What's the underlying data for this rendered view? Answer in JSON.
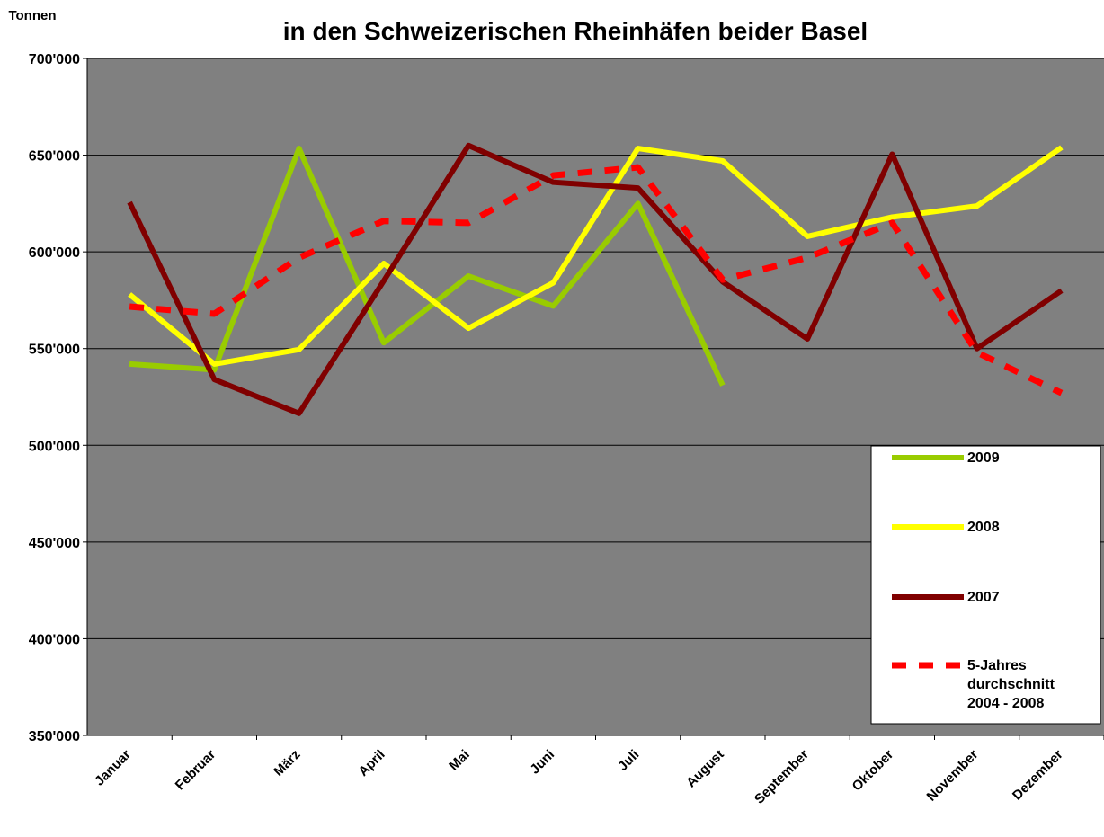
{
  "chart_data": {
    "type": "line",
    "title": "in den Schweizerischen Rheinhäfen beider Basel",
    "y_label": "Tonnen",
    "categories": [
      "Januar",
      "Februar",
      "März",
      "April",
      "Mai",
      "Juni",
      "Juli",
      "August",
      "September",
      "Oktober",
      "November",
      "Dezember"
    ],
    "series": [
      {
        "name": "2009",
        "color": "#99cc00",
        "values": [
          542000,
          539000,
          653500,
          553000,
          587500,
          572000,
          625000,
          531000,
          null,
          null,
          null,
          null
        ]
      },
      {
        "name": "2008",
        "color": "#ffff00",
        "values": [
          578000,
          542000,
          549500,
          594000,
          560500,
          584000,
          653500,
          647000,
          608000,
          618000,
          623700,
          654000
        ]
      },
      {
        "name": "2007",
        "color": "#800000",
        "values": [
          625600,
          534000,
          516500,
          585000,
          655000,
          636000,
          633000,
          584500,
          555000,
          650500,
          550000,
          580000
        ]
      },
      {
        "name": "5-Jahres durchschnitt 2004 - 2008",
        "color": "#ff0000",
        "dashed": true,
        "values": [
          571700,
          568000,
          597000,
          616000,
          615000,
          639500,
          643700,
          585600,
          597000,
          615000,
          548000,
          527000
        ]
      }
    ],
    "ylim": [
      350000,
      700000
    ],
    "yticks": [
      {
        "value": 350000,
        "label": "350'000"
      },
      {
        "value": 400000,
        "label": "400'000"
      },
      {
        "value": 450000,
        "label": "450'000"
      },
      {
        "value": 500000,
        "label": "500'000"
      },
      {
        "value": 550000,
        "label": "550'000"
      },
      {
        "value": 600000,
        "label": "600'000"
      },
      {
        "value": 650000,
        "label": "650'000"
      },
      {
        "value": 700000,
        "label": "700'000"
      }
    ],
    "grid": true
  }
}
